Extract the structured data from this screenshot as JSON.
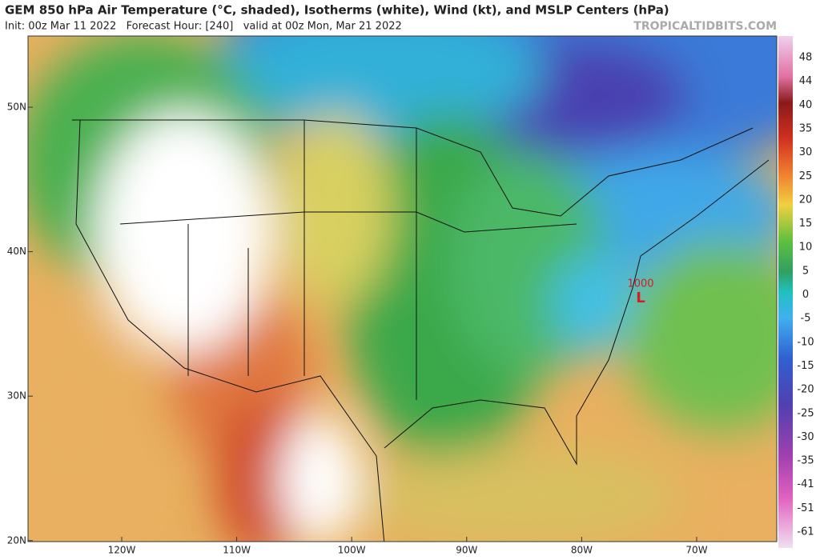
{
  "header": {
    "title": "GEM 850 hPa Air Temperature (°C, shaded), Isotherms (white), Wind (kt), and MSLP Centers (hPa)",
    "subtitle": "Init: 00z Mar 11 2022   Forecast Hour: [240]   valid at 00z Mon, Mar 21 2022",
    "credit": "TROPICALTIDBITS.COM"
  },
  "map": {
    "latitude_labels": [
      "50N",
      "40N",
      "30N",
      "20N"
    ],
    "longitude_labels": [
      "120W",
      "110W",
      "100W",
      "90W",
      "80W",
      "70W"
    ],
    "pressure_centers": [
      {
        "value": 1000,
        "symbol": "L"
      }
    ]
  },
  "colorbar": {
    "labels": [
      48,
      44,
      40,
      35,
      30,
      25,
      20,
      15,
      10,
      5,
      0,
      -5,
      -10,
      -15,
      -20,
      -25,
      -30,
      -35,
      -41,
      -51,
      -61
    ]
  }
}
